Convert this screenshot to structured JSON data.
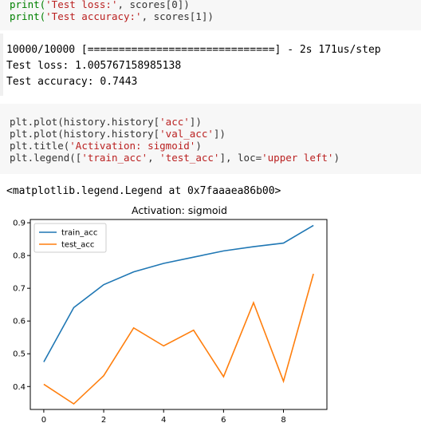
{
  "cell1": {
    "line1_fn": "print(",
    "line1_str": "'Test loss:'",
    "line1_rest": ", scores[0])",
    "line2_fn": "print(",
    "line2_str": "'Test accuracy:'",
    "line2_rest": ", scores[1])"
  },
  "output1": {
    "progress": "10000/10000 [==============================] - 2s 171us/step",
    "loss": "Test loss: 1.005767158985138",
    "accuracy": "Test accuracy: 0.7443"
  },
  "cell2": {
    "l1_a": "plt.plot(history.history[",
    "l1_s": "'acc'",
    "l1_b": "])",
    "l2_a": "plt.plot(history.history[",
    "l2_s": "'val_acc'",
    "l2_b": "])",
    "l3_a": "plt.title(",
    "l3_s": "'Activation: sigmoid'",
    "l3_b": ")",
    "l4_a": "plt.legend([",
    "l4_s1": "'train_acc'",
    "l4_c": ", ",
    "l4_s2": "'test_acc'",
    "l4_d": "], loc=",
    "l4_s3": "'upper left'",
    "l4_e": ")"
  },
  "output2": {
    "repr": "<matplotlib.legend.Legend at 0x7faaaea86b00>"
  },
  "colors": {
    "train": "#1f77b4",
    "test": "#ff7f0e",
    "string": "#ba2121"
  },
  "chart_data": {
    "type": "line",
    "title": "Activation: sigmoid",
    "xlabel": "",
    "ylabel": "",
    "x": [
      0,
      1,
      2,
      3,
      4,
      5,
      6,
      7,
      8,
      9
    ],
    "xticks": [
      "0",
      "2",
      "4",
      "6",
      "8"
    ],
    "yticks": [
      "0.4",
      "0.5",
      "0.6",
      "0.7",
      "0.8",
      "0.9"
    ],
    "xlim": [
      -0.45,
      9.45
    ],
    "ylim": [
      0.33,
      0.91
    ],
    "legend_placement": "upper left",
    "series": [
      {
        "name": "train_acc",
        "values": [
          0.475,
          0.641,
          0.711,
          0.75,
          0.776,
          0.795,
          0.814,
          0.827,
          0.838,
          0.892
        ]
      },
      {
        "name": "test_acc",
        "values": [
          0.407,
          0.347,
          0.433,
          0.579,
          0.524,
          0.572,
          0.43,
          0.656,
          0.416,
          0.744
        ]
      }
    ]
  }
}
